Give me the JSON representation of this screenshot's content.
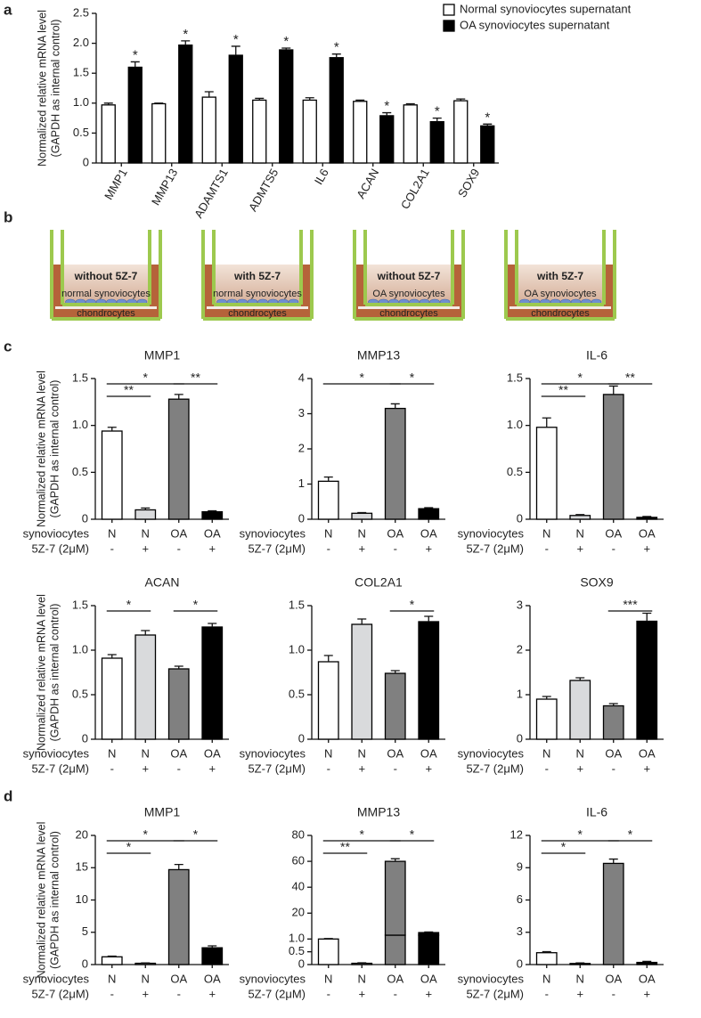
{
  "panel_labels": [
    "a",
    "b",
    "c",
    "d"
  ],
  "diagram": {
    "wells": [
      {
        "treatment": "without 5Z-7",
        "synoviocytes": "normal synoviocytes",
        "chondrocytes": "chondrocytes"
      },
      {
        "treatment": "with 5Z-7",
        "synoviocytes": "normal synoviocytes",
        "chondrocytes": "chondrocytes"
      },
      {
        "treatment": "without 5Z-7",
        "synoviocytes": "OA synoviocytes",
        "chondrocytes": "chondrocytes"
      },
      {
        "treatment": "with 5Z-7",
        "synoviocytes": "OA synoviocytes",
        "chondrocytes": "chondrocytes"
      }
    ]
  },
  "chart_data": [
    {
      "type": "grouped_bar",
      "ylabel": [
        "Normalized relative mRNA level",
        "(GAPDH as internal control)"
      ],
      "categories": [
        "MMP1",
        "MMP13",
        "ADAMTS1",
        "ADMTS5",
        "IL6",
        "ACAN",
        "COL2A1",
        "SOX9"
      ],
      "series": [
        {
          "name": "Normal synoviocytes supernatant",
          "color": "#ffffff",
          "values": [
            0.97,
            0.99,
            1.1,
            1.05,
            1.05,
            1.03,
            0.97,
            1.04
          ],
          "errors": [
            0.03,
            0.01,
            0.09,
            0.03,
            0.04,
            0.02,
            0.02,
            0.03
          ]
        },
        {
          "name": "OA synoviocytes supernatant",
          "color": "#000000",
          "values": [
            1.6,
            1.97,
            1.8,
            1.89,
            1.76,
            0.79,
            0.69,
            0.62
          ],
          "errors": [
            0.09,
            0.07,
            0.15,
            0.03,
            0.06,
            0.05,
            0.06,
            0.03
          ]
        }
      ],
      "annotations": [
        "*",
        "*",
        "*",
        "*",
        "*",
        "*",
        "*",
        "*"
      ],
      "ylim": [
        0,
        2.5
      ],
      "yticks": [
        0,
        0.5,
        {
          "value": 1,
          "label": "1.0"
        },
        1.5,
        {
          "value": 2,
          "label": "2.0"
        },
        2.5
      ]
    },
    {
      "type": "bar",
      "title": "MMP1",
      "ylabel": [
        "Normalized relative mRNA level",
        "(GAPDH as internal control)"
      ],
      "row_labels": [
        "synoviocytes",
        "5Z-7 (2μM)"
      ],
      "categories": [
        "N",
        "N",
        "OA",
        "OA"
      ],
      "treatments": [
        "-",
        "+",
        "-",
        "+"
      ],
      "colors": [
        "#ffffff",
        "#d9dadc",
        "#808080",
        "#000000"
      ],
      "values": [
        0.94,
        0.1,
        1.28,
        0.08
      ],
      "errors": [
        0.04,
        0.02,
        0.05,
        0.01
      ],
      "brackets": [
        {
          "bars": [
            0,
            1
          ],
          "label": "**"
        },
        {
          "bars": [
            0,
            2
          ],
          "label": "*"
        },
        {
          "bars": [
            2,
            3
          ],
          "label": "**"
        }
      ],
      "ylim": [
        0,
        1.5
      ],
      "yticks": [
        0,
        0.5,
        {
          "value": 1,
          "label": "1.0"
        },
        1.5
      ]
    },
    {
      "type": "bar",
      "title": "MMP13",
      "row_labels": [
        "synoviocytes",
        "5Z-7 (2μM)"
      ],
      "categories": [
        "N",
        "N",
        "OA",
        "OA"
      ],
      "treatments": [
        "-",
        "+",
        "-",
        "+"
      ],
      "colors": [
        "#ffffff",
        "#d9dadc",
        "#808080",
        "#000000"
      ],
      "values": [
        1.08,
        0.17,
        3.15,
        0.3
      ],
      "errors": [
        0.12,
        0.02,
        0.13,
        0.03
      ],
      "brackets": [
        {
          "bars": [
            0,
            2
          ],
          "label": "*"
        },
        {
          "bars": [
            2,
            3
          ],
          "label": "*"
        }
      ],
      "ylim": [
        0,
        4
      ],
      "yticks": [
        0,
        1,
        2,
        3,
        4
      ]
    },
    {
      "type": "bar",
      "title": "IL-6",
      "row_labels": [
        "synoviocytes",
        "5Z-7 (2μM)"
      ],
      "categories": [
        "N",
        "N",
        "OA",
        "OA"
      ],
      "treatments": [
        "-",
        "+",
        "-",
        "+"
      ],
      "colors": [
        "#ffffff",
        "#d9dadc",
        "#808080",
        "#000000"
      ],
      "values": [
        0.98,
        0.04,
        1.33,
        0.02
      ],
      "errors": [
        0.1,
        0.01,
        0.09,
        0.01
      ],
      "brackets": [
        {
          "bars": [
            0,
            1
          ],
          "label": "**"
        },
        {
          "bars": [
            0,
            2
          ],
          "label": "*"
        },
        {
          "bars": [
            2,
            3
          ],
          "label": "**"
        }
      ],
      "ylim": [
        0,
        1.5
      ],
      "yticks": [
        0,
        0.5,
        {
          "value": 1,
          "label": "1.0"
        },
        1.5
      ]
    },
    {
      "type": "bar",
      "title": "ACAN",
      "ylabel": [
        "Normalized relative mRNA level",
        "(GAPDH as internal control)"
      ],
      "row_labels": [
        "synoviocytes",
        "5Z-7 (2μM)"
      ],
      "categories": [
        "N",
        "N",
        "OA",
        "OA"
      ],
      "treatments": [
        "-",
        "+",
        "-",
        "+"
      ],
      "colors": [
        "#ffffff",
        "#d9dadc",
        "#808080",
        "#000000"
      ],
      "values": [
        0.91,
        1.17,
        0.79,
        1.26
      ],
      "errors": [
        0.04,
        0.05,
        0.03,
        0.04
      ],
      "brackets": [
        {
          "bars": [
            0,
            1
          ],
          "label": "*"
        },
        {
          "bars": [
            2,
            3
          ],
          "label": "*"
        }
      ],
      "ylim": [
        0,
        1.5
      ],
      "yticks": [
        0,
        0.5,
        {
          "value": 1,
          "label": "1.0"
        },
        1.5
      ]
    },
    {
      "type": "bar",
      "title": "COL2A1",
      "row_labels": [
        "synoviocytes",
        "5Z-7 (2μM)"
      ],
      "categories": [
        "N",
        "N",
        "OA",
        "OA"
      ],
      "treatments": [
        "-",
        "+",
        "-",
        "+"
      ],
      "colors": [
        "#ffffff",
        "#d9dadc",
        "#808080",
        "#000000"
      ],
      "values": [
        0.87,
        1.29,
        0.74,
        1.32
      ],
      "errors": [
        0.07,
        0.06,
        0.03,
        0.06
      ],
      "brackets": [
        {
          "bars": [
            2,
            3
          ],
          "label": "*"
        }
      ],
      "ylim": [
        0,
        1.5
      ],
      "yticks": [
        0,
        0.5,
        {
          "value": 1,
          "label": "1.0"
        },
        1.5
      ]
    },
    {
      "type": "bar",
      "title": "SOX9",
      "row_labels": [
        "synoviocytes",
        "5Z-7 (2μM)"
      ],
      "categories": [
        "N",
        "N",
        "OA",
        "OA"
      ],
      "treatments": [
        "-",
        "+",
        "-",
        "+"
      ],
      "colors": [
        "#ffffff",
        "#d9dadc",
        "#808080",
        "#000000"
      ],
      "values": [
        0.9,
        1.32,
        0.75,
        2.65
      ],
      "errors": [
        0.06,
        0.06,
        0.05,
        0.18
      ],
      "brackets": [
        {
          "bars": [
            2,
            3
          ],
          "label": "***"
        }
      ],
      "ylim": [
        0,
        3
      ],
      "yticks": [
        0,
        1,
        2,
        3
      ]
    },
    {
      "type": "bar",
      "title": "MMP1",
      "ylabel": [
        "Normalized relative mRNA level",
        "(GAPDH as internal control)"
      ],
      "row_labels": [
        "synoviocytes",
        "5Z-7 (2μM)"
      ],
      "categories": [
        "N",
        "N",
        "OA",
        "OA"
      ],
      "treatments": [
        "-",
        "+",
        "-",
        "+"
      ],
      "colors": [
        "#ffffff",
        "#d9dadc",
        "#808080",
        "#000000"
      ],
      "values": [
        1.2,
        0.2,
        14.7,
        2.6
      ],
      "errors": [
        0.1,
        0.05,
        0.8,
        0.3
      ],
      "brackets": [
        {
          "bars": [
            0,
            1
          ],
          "label": "*"
        },
        {
          "bars": [
            0,
            2
          ],
          "label": "*"
        },
        {
          "bars": [
            2,
            3
          ],
          "label": "*"
        }
      ],
      "ylim": [
        0,
        20
      ],
      "yticks": [
        0,
        5,
        10,
        15,
        20
      ]
    },
    {
      "type": "bar",
      "title": "MMP13",
      "row_labels": [
        "synoviocytes",
        "5Z-7 (2μM)"
      ],
      "categories": [
        "N",
        "N",
        "OA",
        "OA"
      ],
      "treatments": [
        "-",
        "+",
        "-",
        "+"
      ],
      "colors": [
        "#ffffff",
        "#d9dadc",
        "#808080",
        "#000000"
      ],
      "values": [
        1.0,
        0.05,
        60,
        5
      ],
      "errors": [
        0.02,
        0.02,
        2,
        0.5
      ],
      "brackets": [
        {
          "bars": [
            0,
            1
          ],
          "label": "**"
        },
        {
          "bars": [
            0,
            2
          ],
          "label": "*"
        },
        {
          "bars": [
            2,
            3
          ],
          "label": "*"
        }
      ],
      "ylim": [
        3,
        80
      ],
      "yticks": [
        20,
        40,
        60,
        80
      ],
      "ylim_lower": [
        0,
        1.15
      ],
      "yticks_lower": [
        0,
        0.5,
        {
          "value": 1,
          "label": "1.0"
        }
      ]
    },
    {
      "type": "bar",
      "title": "IL-6",
      "row_labels": [
        "synoviocytes",
        "5Z-7 (2μM)"
      ],
      "categories": [
        "N",
        "N",
        "OA",
        "OA"
      ],
      "treatments": [
        "-",
        "+",
        "-",
        "+"
      ],
      "colors": [
        "#ffffff",
        "#d9dadc",
        "#808080",
        "#000000"
      ],
      "values": [
        1.1,
        0.1,
        9.4,
        0.2
      ],
      "errors": [
        0.1,
        0.05,
        0.4,
        0.1
      ],
      "brackets": [
        {
          "bars": [
            0,
            1
          ],
          "label": "*"
        },
        {
          "bars": [
            0,
            2
          ],
          "label": "*"
        },
        {
          "bars": [
            2,
            3
          ],
          "label": "*"
        }
      ],
      "ylim": [
        0,
        12
      ],
      "yticks": [
        0,
        3,
        6,
        9,
        12
      ]
    }
  ]
}
